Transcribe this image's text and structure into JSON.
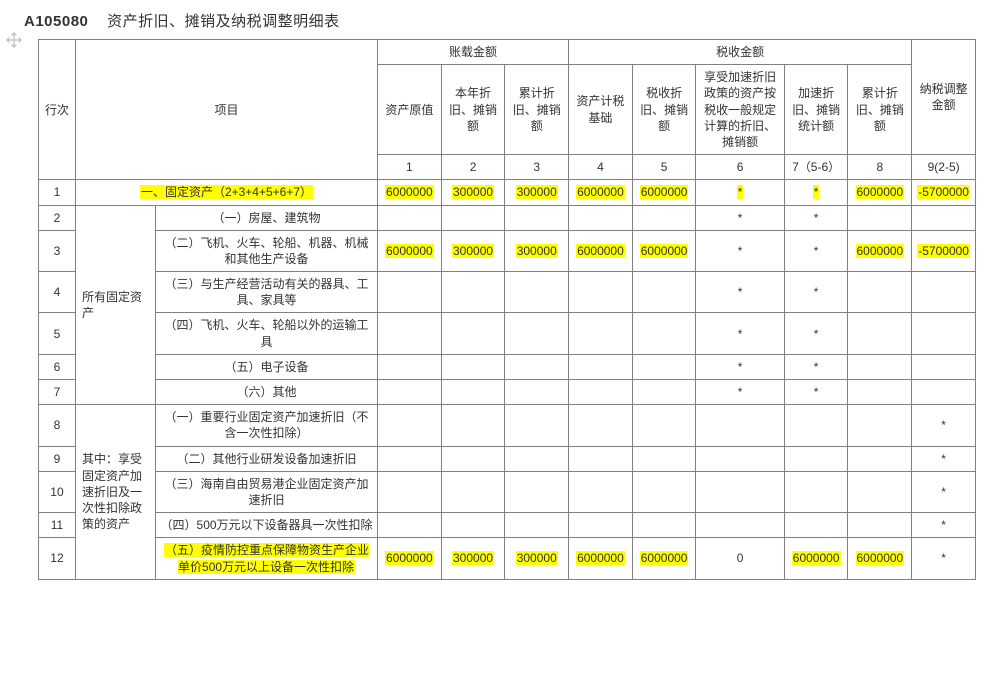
{
  "title_code": "A105080",
  "title_text": "资产折旧、摊销及纳税调整明细表",
  "move_icon_color": "#bfbfbf",
  "highlight_color": "#ffff00",
  "border_color": "#808080",
  "header": {
    "row_no": "行次",
    "item": "项目",
    "book_group": "账载金额",
    "tax_group": "税收金额",
    "adj": "纳税调整金额",
    "c1": "资产原值",
    "c2": "本年折旧、摊销额",
    "c3": "累计折旧、摊销额",
    "c4": "资产计税基础",
    "c5": "税收折旧、摊销额",
    "c6": "享受加速折旧政策的资产按税收一般规定计算的折旧、摊销额",
    "c7": "加速折旧、摊销统计额",
    "c8": "累计折旧、摊销额",
    "n1": "1",
    "n2": "2",
    "n3": "3",
    "n4": "4",
    "n5": "5",
    "n6": "6",
    "n7": "7（5-6）",
    "n8": "8",
    "n9": "9(2-5)"
  },
  "group_labels": {
    "all_fixed": "所有固定资产",
    "accel": "其中：享受固定资产加速折旧及一次性扣除政策的资产"
  },
  "rows": [
    {
      "no": "1",
      "item": "一、固定资产（2+3+4+5+6+7）",
      "item_hl": true,
      "cells": [
        "6000000",
        "300000",
        "300000",
        "6000000",
        "6000000",
        "*",
        "*",
        "6000000",
        "-5700000"
      ],
      "cell_hl": [
        true,
        true,
        true,
        true,
        true,
        true,
        true,
        true,
        true
      ],
      "span_group": false
    },
    {
      "no": "2",
      "item": "（一）房屋、建筑物",
      "cells": [
        "",
        "",
        "",
        "",
        "",
        "*",
        "*",
        "",
        ""
      ],
      "cell_hl": [
        false,
        false,
        false,
        false,
        false,
        false,
        false,
        false,
        false
      ],
      "group_start": "all_fixed",
      "group_rows": 6
    },
    {
      "no": "3",
      "item": "（二）飞机、火车、轮船、机器、机械和其他生产设备",
      "cells": [
        "6000000",
        "300000",
        "300000",
        "6000000",
        "6000000",
        "*",
        "*",
        "6000000",
        "-5700000"
      ],
      "cell_hl": [
        true,
        true,
        true,
        true,
        true,
        false,
        false,
        true,
        true
      ]
    },
    {
      "no": "4",
      "item": "（三）与生产经营活动有关的器具、工具、家具等",
      "cells": [
        "",
        "",
        "",
        "",
        "",
        "*",
        "*",
        "",
        ""
      ],
      "cell_hl": [
        false,
        false,
        false,
        false,
        false,
        false,
        false,
        false,
        false
      ]
    },
    {
      "no": "5",
      "item": "（四）飞机、火车、轮船以外的运输工具",
      "cells": [
        "",
        "",
        "",
        "",
        "",
        "*",
        "*",
        "",
        ""
      ],
      "cell_hl": [
        false,
        false,
        false,
        false,
        false,
        false,
        false,
        false,
        false
      ]
    },
    {
      "no": "6",
      "item": "（五）电子设备",
      "cells": [
        "",
        "",
        "",
        "",
        "",
        "*",
        "*",
        "",
        ""
      ],
      "cell_hl": [
        false,
        false,
        false,
        false,
        false,
        false,
        false,
        false,
        false
      ]
    },
    {
      "no": "7",
      "item": "（六）其他",
      "cells": [
        "",
        "",
        "",
        "",
        "",
        "*",
        "*",
        "",
        ""
      ],
      "cell_hl": [
        false,
        false,
        false,
        false,
        false,
        false,
        false,
        false,
        false
      ]
    },
    {
      "no": "8",
      "item": "（一）重要行业固定资产加速折旧（不含一次性扣除）",
      "cells": [
        "",
        "",
        "",
        "",
        "",
        "",
        "",
        "",
        "*"
      ],
      "cell_hl": [
        false,
        false,
        false,
        false,
        false,
        false,
        false,
        false,
        false
      ],
      "group_start": "accel",
      "group_rows": 5
    },
    {
      "no": "9",
      "item": "（二）其他行业研发设备加速折旧",
      "cells": [
        "",
        "",
        "",
        "",
        "",
        "",
        "",
        "",
        "*"
      ],
      "cell_hl": [
        false,
        false,
        false,
        false,
        false,
        false,
        false,
        false,
        false
      ]
    },
    {
      "no": "10",
      "item": "（三）海南自由贸易港企业固定资产加速折旧",
      "cells": [
        "",
        "",
        "",
        "",
        "",
        "",
        "",
        "",
        "*"
      ],
      "cell_hl": [
        false,
        false,
        false,
        false,
        false,
        false,
        false,
        false,
        false
      ]
    },
    {
      "no": "11",
      "item": "（四）500万元以下设备器具一次性扣除",
      "cells": [
        "",
        "",
        "",
        "",
        "",
        "",
        "",
        "",
        "*"
      ],
      "cell_hl": [
        false,
        false,
        false,
        false,
        false,
        false,
        false,
        false,
        false
      ]
    },
    {
      "no": "12",
      "item": "（五）疫情防控重点保障物资生产企业单价500万元以上设备一次性扣除",
      "item_hl": true,
      "cells": [
        "6000000",
        "300000",
        "300000",
        "6000000",
        "6000000",
        "0",
        "6000000",
        "6000000",
        "*"
      ],
      "cell_hl": [
        true,
        true,
        true,
        true,
        true,
        false,
        true,
        true,
        false
      ]
    }
  ]
}
